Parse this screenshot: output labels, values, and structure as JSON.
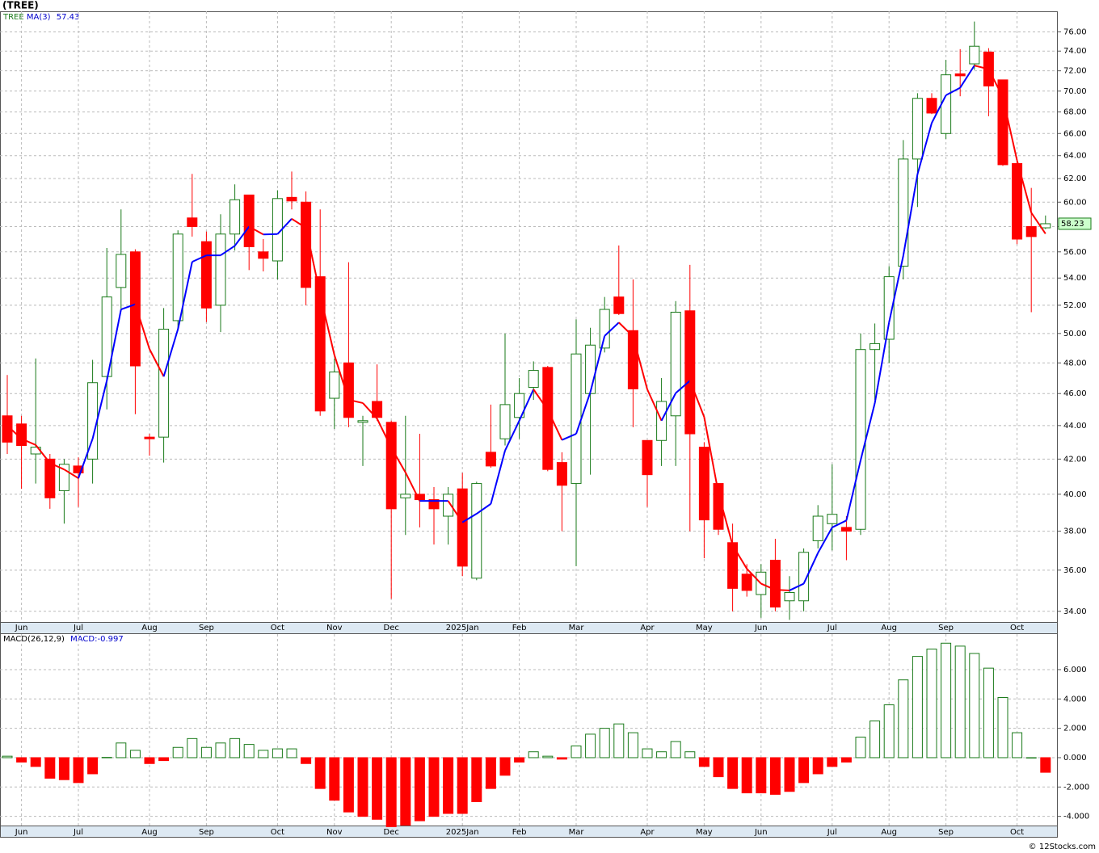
{
  "source": "© 12Stocks.com",
  "chart_data": [
    {
      "type": "candlestick",
      "title": "(TREE)",
      "ticker": "TREE",
      "log_scale": true,
      "grid": true,
      "up_color": "#1a7a1a",
      "down_color": "#ff0000",
      "open": [
        44.6,
        44.1,
        42.3,
        42.0,
        40.2,
        41.6,
        42.0,
        47.1,
        53.3,
        56.0,
        43.3,
        43.3,
        50.9,
        58.7,
        56.8,
        52.0,
        57.4,
        60.6,
        56.0,
        55.3,
        60.4,
        60.0,
        54.1,
        45.7,
        48.0,
        44.2,
        45.5,
        44.2,
        39.8,
        40.0,
        39.7,
        38.8,
        40.3,
        35.6,
        42.4,
        43.2,
        44.5,
        46.4,
        47.7,
        41.8,
        40.6,
        46.0,
        49.0,
        52.6,
        50.2,
        43.1,
        43.1,
        44.6,
        51.6,
        42.7,
        40.6,
        37.4,
        35.8,
        34.8,
        36.5,
        34.5,
        34.5,
        37.5,
        38.4,
        38.2,
        38.1,
        48.9,
        49.6,
        54.9,
        63.7,
        69.3,
        66.0,
        71.7,
        72.7,
        73.9,
        71.1,
        63.3,
        58.0,
        57.9
      ],
      "high": [
        47.2,
        44.6,
        48.3,
        42.3,
        42.0,
        42.1,
        48.2,
        56.3,
        59.4,
        56.2,
        43.5,
        51.8,
        57.7,
        62.4,
        57.6,
        59.0,
        61.5,
        60.6,
        57.0,
        61.0,
        62.6,
        60.9,
        59.4,
        48.3,
        55.2,
        44.6,
        47.9,
        44.3,
        44.6,
        43.5,
        40.4,
        40.4,
        41.2,
        40.7,
        45.3,
        50.0,
        47.0,
        48.1,
        47.8,
        42.4,
        51.0,
        50.4,
        52.6,
        56.5,
        53.9,
        43.1,
        47.0,
        52.3,
        55.0,
        43.0,
        40.6,
        38.4,
        36.3,
        36.3,
        37.6,
        35.7,
        37.1,
        39.4,
        41.7,
        38.8,
        50.0,
        50.7,
        54.9,
        65.4,
        69.8,
        69.8,
        73.1,
        74.2,
        77.1,
        74.3,
        71.1,
        63.4,
        61.2,
        58.9
      ],
      "low": [
        42.3,
        40.3,
        40.6,
        39.2,
        38.4,
        39.3,
        40.6,
        45.0,
        51.7,
        44.7,
        42.2,
        41.8,
        50.2,
        57.2,
        50.8,
        50.1,
        56.1,
        54.6,
        54.5,
        53.9,
        59.4,
        52.0,
        44.6,
        43.8,
        43.9,
        41.6,
        44.3,
        34.6,
        37.8,
        38.2,
        37.3,
        37.3,
        35.7,
        35.5,
        41.5,
        42.8,
        43.2,
        45.6,
        41.3,
        38.0,
        36.2,
        41.1,
        48.7,
        51.3,
        43.9,
        39.3,
        41.6,
        41.6,
        38.0,
        36.6,
        37.8,
        34.0,
        34.7,
        33.7,
        34.0,
        33.6,
        34.0,
        37.1,
        37.0,
        36.5,
        37.8,
        45.6,
        48.0,
        53.9,
        59.6,
        67.8,
        65.5,
        69.5,
        72.1,
        67.6,
        63.1,
        56.6,
        51.5,
        57.8
      ],
      "close": [
        43.0,
        42.8,
        42.7,
        39.8,
        41.7,
        41.2,
        46.7,
        52.6,
        55.8,
        47.8,
        43.2,
        50.3,
        57.4,
        58.0,
        51.8,
        57.4,
        60.2,
        56.4,
        55.5,
        60.3,
        60.1,
        53.3,
        44.9,
        47.4,
        44.5,
        44.3,
        44.5,
        39.2,
        40.0,
        39.7,
        39.2,
        40.0,
        36.2,
        40.6,
        41.6,
        45.3,
        46.0,
        47.5,
        41.4,
        40.5,
        48.6,
        49.2,
        51.7,
        51.4,
        46.3,
        41.1,
        45.5,
        51.5,
        43.5,
        38.6,
        38.1,
        35.1,
        35.0,
        35.9,
        34.2,
        34.9,
        36.9,
        38.8,
        38.9,
        38.0,
        48.9,
        49.3,
        54.1,
        63.7,
        69.3,
        67.9,
        71.6,
        71.5,
        74.5,
        70.5,
        63.2,
        57.0,
        57.2,
        58.23
      ],
      "ma": {
        "name": "MA(3)",
        "last": 57.43,
        "up_color": "#0000ff",
        "down_color": "#ff0000",
        "values": [
          44.0,
          43.2,
          42.83,
          41.77,
          41.4,
          40.9,
          43.2,
          46.83,
          51.7,
          52.07,
          48.93,
          47.1,
          50.3,
          55.23,
          55.73,
          55.73,
          56.47,
          58.0,
          57.37,
          57.4,
          58.63,
          57.9,
          52.77,
          48.53,
          45.6,
          45.4,
          44.43,
          42.67,
          41.23,
          39.63,
          39.63,
          39.63,
          38.47,
          38.93,
          39.47,
          42.5,
          44.3,
          46.27,
          44.97,
          43.13,
          43.5,
          46.1,
          49.83,
          50.77,
          49.8,
          46.27,
          44.3,
          46.03,
          46.83,
          44.53,
          40.07,
          37.27,
          36.07,
          35.33,
          35.03,
          35.0,
          35.33,
          36.87,
          38.2,
          38.57,
          41.93,
          45.4,
          50.77,
          55.7,
          62.37,
          66.97,
          69.6,
          70.33,
          72.53,
          72.17,
          69.4,
          63.57,
          59.13,
          57.43
        ]
      },
      "last_price": 58.23,
      "ylim": [
        33.5,
        78.2
      ],
      "yticks": [
        {
          "value": 34,
          "label": "34.00"
        },
        {
          "value": 36,
          "label": "36.00"
        },
        {
          "value": 38,
          "label": "38.00"
        },
        {
          "value": 40,
          "label": "40.00"
        },
        {
          "value": 42,
          "label": "42.00"
        },
        {
          "value": 44,
          "label": "44.00"
        },
        {
          "value": 46,
          "label": "46.00"
        },
        {
          "value": 48,
          "label": "48.00"
        },
        {
          "value": 50,
          "label": "50.00"
        },
        {
          "value": 52,
          "label": "52.00"
        },
        {
          "value": 54,
          "label": "54.00"
        },
        {
          "value": 56,
          "label": "56.00"
        },
        {
          "value": 58,
          "label": "58.00"
        },
        {
          "value": 60,
          "label": "60.00"
        },
        {
          "value": 62,
          "label": "62.00"
        },
        {
          "value": 64,
          "label": "64.00"
        },
        {
          "value": 66,
          "label": "66.00"
        },
        {
          "value": 68,
          "label": "68.00"
        },
        {
          "value": 70,
          "label": "70.00"
        },
        {
          "value": 72,
          "label": "72.00"
        },
        {
          "value": 74,
          "label": "74.00"
        },
        {
          "value": 76,
          "label": "76.00"
        }
      ],
      "xticks": [
        {
          "value": 1,
          "label": "Jun"
        },
        {
          "value": 5,
          "label": "Jul"
        },
        {
          "value": 10,
          "label": "Aug"
        },
        {
          "value": 14,
          "label": "Sep"
        },
        {
          "value": 19,
          "label": "Oct"
        },
        {
          "value": 23,
          "label": "Nov"
        },
        {
          "value": 27,
          "label": "Dec"
        },
        {
          "value": 32,
          "label": "2025Jan"
        },
        {
          "value": 36,
          "label": "Feb"
        },
        {
          "value": 40,
          "label": "Mar"
        },
        {
          "value": 45,
          "label": "Apr"
        },
        {
          "value": 49,
          "label": "May"
        },
        {
          "value": 53,
          "label": "Jun"
        },
        {
          "value": 58,
          "label": "Jul"
        },
        {
          "value": 62,
          "label": "Aug"
        },
        {
          "value": 66,
          "label": "Sep"
        },
        {
          "value": 71,
          "label": "Oct"
        }
      ]
    },
    {
      "type": "bar",
      "name": "MACD(26,12,9)",
      "value_name": "MACD:",
      "last_value": -0.997,
      "grid": true,
      "up_color": "#1a7a1a",
      "down_color": "#ff0000",
      "values": [
        0.1,
        -0.3,
        -0.6,
        -1.4,
        -1.5,
        -1.7,
        -1.1,
        0.02,
        1.0,
        0.5,
        -0.4,
        -0.2,
        0.7,
        1.3,
        0.7,
        1.0,
        1.3,
        0.9,
        0.5,
        0.6,
        0.6,
        -0.4,
        -2.1,
        -2.9,
        -3.7,
        -4.0,
        -4.2,
        -4.7,
        -4.6,
        -4.3,
        -4.0,
        -3.8,
        -3.8,
        -3.0,
        -2.1,
        -1.2,
        -0.3,
        0.4,
        0.1,
        -0.1,
        0.8,
        1.6,
        2.0,
        2.3,
        1.7,
        0.6,
        0.4,
        1.1,
        0.4,
        -0.6,
        -1.3,
        -2.1,
        -2.4,
        -2.4,
        -2.5,
        -2.3,
        -1.7,
        -1.1,
        -0.6,
        -0.3,
        1.4,
        2.5,
        3.6,
        5.3,
        6.9,
        7.4,
        7.8,
        7.6,
        7.1,
        6.1,
        4.1,
        1.7,
        0.0,
        -0.997
      ],
      "ylim": [
        -4.68,
        8.42
      ],
      "yticks": [
        {
          "value": -4,
          "label": "-4.000"
        },
        {
          "value": -2,
          "label": "-2.000"
        },
        {
          "value": 0,
          "label": "0.000"
        },
        {
          "value": 2,
          "label": "2.000"
        },
        {
          "value": 4,
          "label": "4.000"
        },
        {
          "value": 6,
          "label": "6.000"
        }
      ],
      "xticks": [
        {
          "value": 1,
          "label": "Jun"
        },
        {
          "value": 5,
          "label": "Jul"
        },
        {
          "value": 10,
          "label": "Aug"
        },
        {
          "value": 14,
          "label": "Sep"
        },
        {
          "value": 19,
          "label": "Oct"
        },
        {
          "value": 23,
          "label": "Nov"
        },
        {
          "value": 27,
          "label": "Dec"
        },
        {
          "value": 32,
          "label": "2025Jan"
        },
        {
          "value": 36,
          "label": "Feb"
        },
        {
          "value": 40,
          "label": "Mar"
        },
        {
          "value": 45,
          "label": "Apr"
        },
        {
          "value": 49,
          "label": "May"
        },
        {
          "value": 53,
          "label": "Jun"
        },
        {
          "value": 58,
          "label": "Jul"
        },
        {
          "value": 62,
          "label": "Aug"
        },
        {
          "value": 66,
          "label": "Sep"
        },
        {
          "value": 71,
          "label": "Oct"
        }
      ]
    }
  ]
}
